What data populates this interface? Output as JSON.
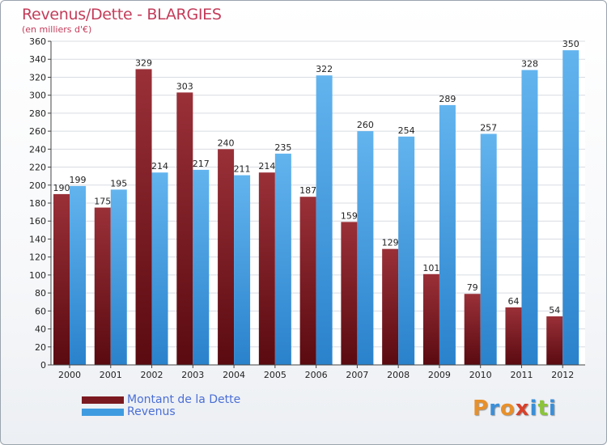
{
  "chart_data": {
    "type": "bar",
    "title": "Revenus/Dette - BLARGIES",
    "subtitle": "(en milliers d'€)",
    "categories": [
      "2000",
      "2001",
      "2002",
      "2003",
      "2004",
      "2005",
      "2006",
      "2007",
      "2008",
      "2009",
      "2010",
      "2011",
      "2012"
    ],
    "series": [
      {
        "name": "Montant de la Dette",
        "color": "#7a1a20",
        "values": [
          190,
          175,
          329,
          303,
          240,
          214,
          187,
          159,
          129,
          101,
          79,
          64,
          54
        ]
      },
      {
        "name": "Revenus",
        "color": "#3f9be0",
        "values": [
          199,
          195,
          214,
          217,
          211,
          235,
          322,
          260,
          254,
          289,
          257,
          328,
          350
        ]
      }
    ],
    "ylim": [
      0,
      360
    ],
    "ytick_step": 20,
    "grid": true,
    "legend_position": "bottom-left"
  },
  "logo": {
    "letters": [
      {
        "ch": "P",
        "color": "#e8902a"
      },
      {
        "ch": "r",
        "color": "#3a8fd8"
      },
      {
        "ch": "o",
        "color": "#e8902a"
      },
      {
        "ch": "x",
        "color": "#d8402a"
      },
      {
        "ch": "i",
        "color": "#3a8fd8"
      },
      {
        "ch": "t",
        "color": "#8cc43c"
      },
      {
        "ch": "i",
        "color": "#3a8fd8"
      }
    ]
  }
}
